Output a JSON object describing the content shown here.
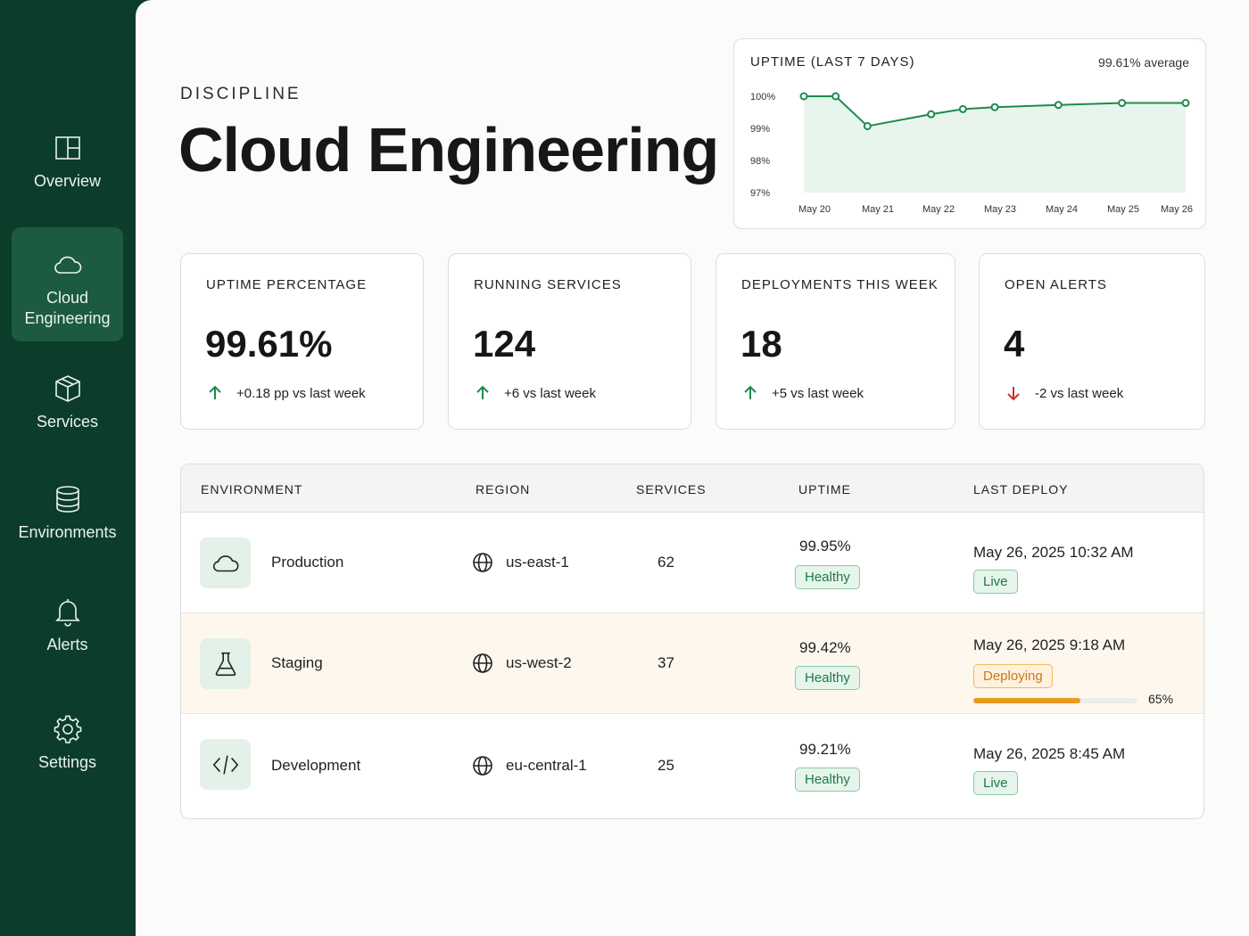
{
  "sidebar": {
    "items": [
      {
        "label": "Overview",
        "icon": "layout-icon"
      },
      {
        "label": "Cloud Engineering",
        "icon": "cloud-icon",
        "active": true
      },
      {
        "label": "Services",
        "icon": "cube-icon"
      },
      {
        "label": "Environments",
        "icon": "database-icon"
      },
      {
        "label": "Alerts",
        "icon": "bell-icon"
      },
      {
        "label": "Settings",
        "icon": "gear-icon"
      }
    ]
  },
  "header": {
    "eyebrow": "DISCIPLINE",
    "title": "Cloud Engineering"
  },
  "uptime_chart": {
    "title": "UPTIME (LAST 7 DAYS)",
    "average_label": "99.61% average",
    "y_ticks": [
      "100%",
      "99%",
      "98%",
      "97%"
    ],
    "accent_color": "#1e8a4f"
  },
  "chart_data": {
    "type": "area",
    "title": "UPTIME (LAST 7 DAYS)",
    "categories": [
      "May 20",
      "May 21",
      "May 22",
      "May 23",
      "May 24",
      "May 25",
      "May 26"
    ],
    "x": [
      "May 20",
      "May 20.5",
      "May 21",
      "May 22",
      "May 22.5",
      "May 23",
      "May 24",
      "May 25",
      "May 26"
    ],
    "values": [
      100.0,
      100.0,
      99.07,
      99.44,
      99.6,
      99.66,
      99.73,
      99.79,
      99.79
    ],
    "ylim": [
      97,
      100
    ],
    "grid": false,
    "legend": "none"
  },
  "kpis": [
    {
      "label": "UPTIME PERCENTAGE",
      "value": "99.61%",
      "delta": "+0.18 pp vs last week",
      "direction": "up"
    },
    {
      "label": "RUNNING SERVICES",
      "value": "124",
      "delta": "+6 vs last week",
      "direction": "up"
    },
    {
      "label": "DEPLOYMENTS THIS WEEK",
      "value": "18",
      "delta": "+5 vs last week",
      "direction": "up"
    },
    {
      "label": "OPEN ALERTS",
      "value": "4",
      "delta": "-2 vs last week",
      "direction": "down"
    }
  ],
  "colors": {
    "sidebar_bg": "#0c3d2b",
    "up": "#1e8a4f",
    "down": "#d32f2f",
    "deploying": "#e79a1e"
  },
  "table": {
    "headers": [
      "ENVIRONMENT",
      "REGION",
      "SERVICES",
      "UPTIME",
      "LAST DEPLOY"
    ],
    "rows": [
      {
        "name": "Production",
        "icon": "cloud-icon",
        "region": "us-east-1",
        "services": "62",
        "uptime": "99.95%",
        "health": "Healthy",
        "last_deploy": "May 26, 2025 10:32 AM",
        "deploy_status": "Live"
      },
      {
        "name": "Staging",
        "icon": "flask-icon",
        "region": "us-west-2",
        "services": "37",
        "uptime": "99.42%",
        "health": "Healthy",
        "last_deploy": "May 26, 2025 9:18 AM",
        "deploy_status": "Deploying",
        "progress": 0.65,
        "progress_label": "65%"
      },
      {
        "name": "Development",
        "icon": "code-icon",
        "region": "eu-central-1",
        "services": "25",
        "uptime": "99.21%",
        "health": "Healthy",
        "last_deploy": "May 26, 2025 8:45 AM",
        "deploy_status": "Live"
      }
    ]
  }
}
